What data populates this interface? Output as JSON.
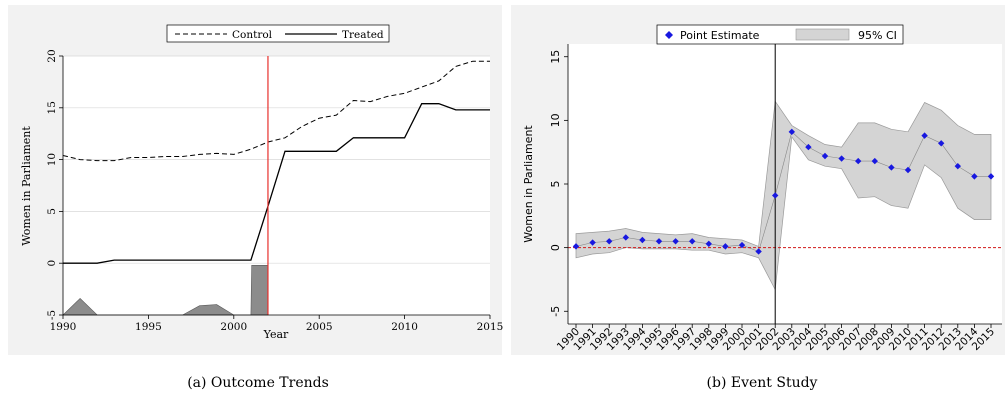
{
  "chart_data": [
    {
      "type": "line",
      "caption": "(a) Outcome Trends",
      "xlabel": "Year",
      "ylabel": "Women in Parliament",
      "xlim": [
        1990,
        2015
      ],
      "ylim": [
        -5,
        20
      ],
      "xticks": [
        1990,
        1995,
        2000,
        2005,
        2010,
        2015
      ],
      "yticks": [
        -5,
        0,
        5,
        10,
        15,
        20
      ],
      "legend_position": "top",
      "vline_year": 2002,
      "vline_color": "#e8302c",
      "series": [
        {
          "name": "Control",
          "style": "dashed",
          "x": [
            1990,
            1991,
            1992,
            1993,
            1994,
            1995,
            1996,
            1997,
            1998,
            1999,
            2000,
            2001,
            2002,
            2003,
            2004,
            2005,
            2006,
            2007,
            2008,
            2009,
            2010,
            2011,
            2012,
            2013,
            2014,
            2015
          ],
          "y": [
            10.4,
            10.0,
            9.9,
            9.9,
            10.2,
            10.2,
            10.3,
            10.3,
            10.5,
            10.6,
            10.5,
            11.0,
            11.7,
            12.1,
            13.2,
            14.0,
            14.3,
            15.7,
            15.6,
            16.1,
            16.4,
            17.0,
            17.6,
            19.0,
            19.5,
            19.5
          ]
        },
        {
          "name": "Treated",
          "style": "solid",
          "x": [
            1990,
            1991,
            1992,
            1993,
            1994,
            1995,
            1996,
            1997,
            1998,
            1999,
            2000,
            2001,
            2002,
            2003,
            2004,
            2005,
            2006,
            2007,
            2008,
            2009,
            2010,
            2011,
            2012,
            2013,
            2014,
            2015
          ],
          "y": [
            0.0,
            0.0,
            0.0,
            0.3,
            0.3,
            0.3,
            0.3,
            0.3,
            0.3,
            0.3,
            0.3,
            0.3,
            5.5,
            10.8,
            10.8,
            10.8,
            10.8,
            12.1,
            12.1,
            12.1,
            12.1,
            15.4,
            15.4,
            14.8,
            14.8,
            14.8
          ]
        }
      ],
      "area": {
        "name": "shaded triangles",
        "color": "#8c8c8c",
        "x": [
          1990,
          1991,
          1992,
          1997,
          1998,
          1999,
          2000,
          2001,
          2001.05,
          2002
        ],
        "y": [
          -5,
          -3.4,
          -5,
          -5,
          -4.1,
          -4.0,
          -5,
          -5,
          -0.2,
          -0.2
        ]
      }
    },
    {
      "type": "scatter",
      "caption": "(b) Event Study",
      "ylabel": "Women in Parliament",
      "ylim": [
        -6,
        16
      ],
      "yticks": [
        -5,
        0,
        5,
        10,
        15
      ],
      "categories": [
        "1990",
        "1991",
        "1992",
        "1993",
        "1994",
        "1995",
        "1996",
        "1997",
        "1998",
        "1999",
        "2000",
        "2001",
        "2002",
        "2003",
        "2004",
        "2005",
        "2006",
        "2007",
        "2008",
        "2009",
        "2010",
        "2011",
        "2012",
        "2013",
        "2014",
        "2015"
      ],
      "legend_position": "top",
      "vline_year": "2002",
      "hline_y": 0,
      "hline_color": "#d11919",
      "point_color": "#1818e0",
      "ci_color": "#d4d4d4",
      "series": [
        {
          "name": "Point Estimate",
          "values": [
            0.1,
            0.4,
            0.5,
            0.8,
            0.6,
            0.5,
            0.5,
            0.5,
            0.3,
            0.1,
            0.2,
            -0.3,
            4.1,
            9.1,
            7.9,
            7.2,
            7.0,
            6.8,
            6.8,
            6.3,
            6.1,
            8.8,
            8.2,
            6.4,
            5.6,
            5.6
          ]
        },
        {
          "name": "95% CI",
          "lower": [
            -0.8,
            -0.5,
            -0.4,
            0.0,
            -0.1,
            -0.1,
            -0.1,
            -0.2,
            -0.2,
            -0.5,
            -0.4,
            -0.8,
            -3.3,
            8.7,
            6.9,
            6.4,
            6.2,
            3.9,
            4.0,
            3.3,
            3.1,
            6.5,
            5.5,
            3.1,
            2.2,
            2.2
          ],
          "upper": [
            1.1,
            1.2,
            1.3,
            1.5,
            1.2,
            1.1,
            1.0,
            1.1,
            0.8,
            0.7,
            0.6,
            0.1,
            11.5,
            9.6,
            8.8,
            8.1,
            7.9,
            9.8,
            9.8,
            9.3,
            9.1,
            11.4,
            10.8,
            9.6,
            8.9,
            8.9
          ]
        }
      ]
    }
  ]
}
